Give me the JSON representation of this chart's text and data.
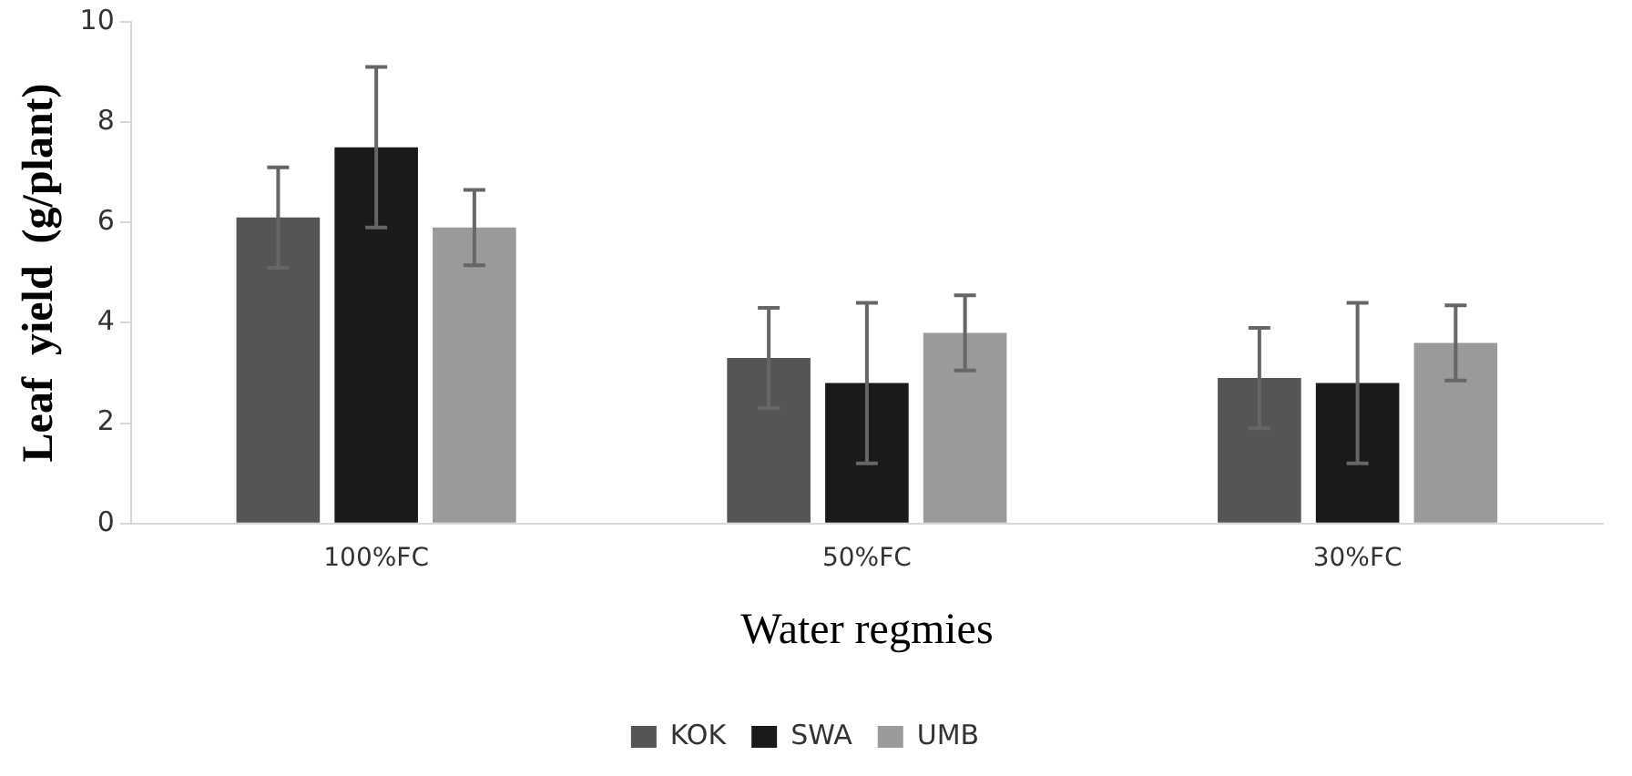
{
  "chart_data": {
    "type": "bar",
    "xlabel": "Water regmies",
    "ylabel": "Leaf  yield  (g/plant)",
    "categories": [
      "100%FC",
      "50%FC",
      "30%FC"
    ],
    "series": [
      {
        "name": "KOK",
        "color": "#555555",
        "values": [
          6.1,
          3.3,
          2.9
        ],
        "errors": [
          1.0,
          1.0,
          1.0
        ]
      },
      {
        "name": "SWA",
        "color": "#1a1a1a",
        "values": [
          7.5,
          2.8,
          2.8
        ],
        "errors": [
          1.6,
          1.6,
          1.6
        ]
      },
      {
        "name": "UMB",
        "color": "#9a9a9a",
        "values": [
          5.9,
          3.8,
          3.6
        ],
        "errors": [
          0.75,
          0.75,
          0.75
        ]
      }
    ],
    "ylim": [
      0,
      10
    ],
    "yticks": [
      0,
      2,
      4,
      6,
      8,
      10
    ],
    "grid": false,
    "legend": "bottom"
  }
}
